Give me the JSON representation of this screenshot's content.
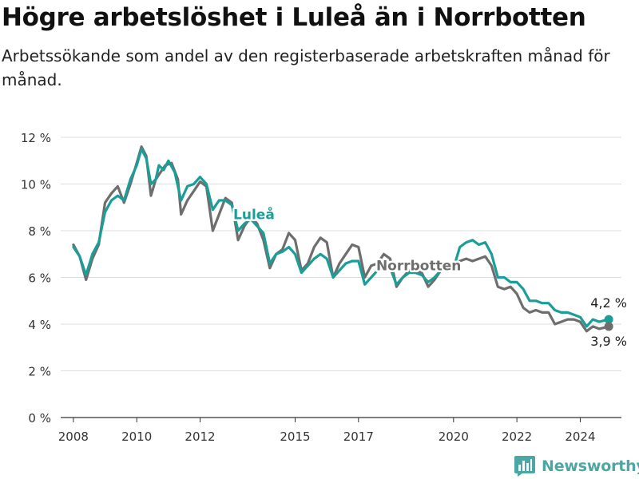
{
  "title": "Högre arbetslöshet i Luleå än i Norrbotten",
  "subtitle": "Arbetssökande som andel av den registerbaserade arbetskraften månad för månad.",
  "brand": {
    "name": "Newsworthy",
    "logo_icon": "bar-chart-logo-icon",
    "color": "#4ba7a4"
  },
  "chart_data": {
    "type": "line",
    "ylim": [
      0,
      12
    ],
    "xlim": [
      2007.6,
      2025.3
    ],
    "y_ticks": [
      0,
      2,
      4,
      6,
      8,
      10,
      12
    ],
    "y_tick_labels": [
      "0 %",
      "2 %",
      "4 %",
      "6 %",
      "8 %",
      "10 %",
      "12 %"
    ],
    "x_ticks": [
      2008,
      2010,
      2012,
      2015,
      2017,
      2020,
      2022,
      2024
    ],
    "x_tick_labels": [
      "2008",
      "2010",
      "2012",
      "2015",
      "2017",
      "2020",
      "2022",
      "2024"
    ],
    "grid": true,
    "series": [
      {
        "name": "Luleå",
        "color": "#1a9e97",
        "label_x": 2013.7,
        "label_y": 8.5,
        "end_label": "4,2 %",
        "points": [
          [
            2008.0,
            7.3
          ],
          [
            2008.2,
            6.9
          ],
          [
            2008.4,
            6.1
          ],
          [
            2008.6,
            7.0
          ],
          [
            2008.8,
            7.5
          ],
          [
            2009.0,
            8.8
          ],
          [
            2009.2,
            9.3
          ],
          [
            2009.4,
            9.5
          ],
          [
            2009.6,
            9.3
          ],
          [
            2009.8,
            10.2
          ],
          [
            2010.0,
            10.8
          ],
          [
            2010.15,
            11.5
          ],
          [
            2010.3,
            11.1
          ],
          [
            2010.45,
            10.0
          ],
          [
            2010.6,
            10.2
          ],
          [
            2010.7,
            10.8
          ],
          [
            2010.85,
            10.6
          ],
          [
            2011.0,
            11.0
          ],
          [
            2011.2,
            10.5
          ],
          [
            2011.4,
            9.3
          ],
          [
            2011.6,
            9.9
          ],
          [
            2011.8,
            10.0
          ],
          [
            2012.0,
            10.3
          ],
          [
            2012.2,
            10.0
          ],
          [
            2012.4,
            8.9
          ],
          [
            2012.6,
            9.3
          ],
          [
            2012.8,
            9.3
          ],
          [
            2013.0,
            9.1
          ],
          [
            2013.2,
            8.0
          ],
          [
            2013.4,
            8.3
          ],
          [
            2013.6,
            8.5
          ],
          [
            2013.8,
            8.2
          ],
          [
            2014.0,
            7.9
          ],
          [
            2014.2,
            6.6
          ],
          [
            2014.4,
            7.0
          ],
          [
            2014.6,
            7.1
          ],
          [
            2014.8,
            7.3
          ],
          [
            2015.0,
            7.0
          ],
          [
            2015.2,
            6.2
          ],
          [
            2015.4,
            6.5
          ],
          [
            2015.6,
            6.8
          ],
          [
            2015.8,
            7.0
          ],
          [
            2016.0,
            6.8
          ],
          [
            2016.2,
            6.0
          ],
          [
            2016.4,
            6.3
          ],
          [
            2016.6,
            6.6
          ],
          [
            2016.8,
            6.7
          ],
          [
            2017.0,
            6.7
          ],
          [
            2017.2,
            5.7
          ],
          [
            2017.4,
            6.0
          ],
          [
            2017.6,
            6.3
          ],
          [
            2017.8,
            6.4
          ],
          [
            2018.0,
            6.4
          ],
          [
            2018.2,
            5.7
          ],
          [
            2018.4,
            6.0
          ],
          [
            2018.6,
            6.2
          ],
          [
            2018.8,
            6.2
          ],
          [
            2019.0,
            6.1
          ],
          [
            2019.2,
            5.8
          ],
          [
            2019.4,
            6.0
          ],
          [
            2019.6,
            6.3
          ],
          [
            2019.8,
            6.5
          ],
          [
            2020.0,
            6.4
          ],
          [
            2020.2,
            7.3
          ],
          [
            2020.4,
            7.5
          ],
          [
            2020.6,
            7.6
          ],
          [
            2020.8,
            7.4
          ],
          [
            2021.0,
            7.5
          ],
          [
            2021.2,
            7.0
          ],
          [
            2021.4,
            6.0
          ],
          [
            2021.6,
            6.0
          ],
          [
            2021.8,
            5.8
          ],
          [
            2022.0,
            5.8
          ],
          [
            2022.2,
            5.5
          ],
          [
            2022.4,
            5.0
          ],
          [
            2022.6,
            5.0
          ],
          [
            2022.8,
            4.9
          ],
          [
            2023.0,
            4.9
          ],
          [
            2023.2,
            4.6
          ],
          [
            2023.4,
            4.5
          ],
          [
            2023.6,
            4.5
          ],
          [
            2023.8,
            4.4
          ],
          [
            2024.0,
            4.3
          ],
          [
            2024.2,
            3.9
          ],
          [
            2024.4,
            4.2
          ],
          [
            2024.6,
            4.1
          ],
          [
            2024.9,
            4.2
          ]
        ]
      },
      {
        "name": "Norrbotten",
        "color": "#6e6e6e",
        "label_x": 2018.9,
        "label_y": 6.3,
        "end_label": "3,9 %",
        "points": [
          [
            2008.0,
            7.4
          ],
          [
            2008.2,
            6.9
          ],
          [
            2008.4,
            5.9
          ],
          [
            2008.6,
            6.8
          ],
          [
            2008.8,
            7.4
          ],
          [
            2009.0,
            9.2
          ],
          [
            2009.2,
            9.6
          ],
          [
            2009.4,
            9.9
          ],
          [
            2009.6,
            9.2
          ],
          [
            2009.8,
            10.0
          ],
          [
            2010.0,
            10.9
          ],
          [
            2010.15,
            11.6
          ],
          [
            2010.3,
            11.2
          ],
          [
            2010.45,
            9.5
          ],
          [
            2010.6,
            10.2
          ],
          [
            2010.75,
            10.5
          ],
          [
            2010.9,
            10.8
          ],
          [
            2011.1,
            10.9
          ],
          [
            2011.3,
            10.2
          ],
          [
            2011.4,
            8.7
          ],
          [
            2011.6,
            9.3
          ],
          [
            2011.8,
            9.7
          ],
          [
            2012.0,
            10.1
          ],
          [
            2012.2,
            9.9
          ],
          [
            2012.4,
            8.0
          ],
          [
            2012.6,
            8.7
          ],
          [
            2012.8,
            9.4
          ],
          [
            2013.0,
            9.2
          ],
          [
            2013.2,
            7.6
          ],
          [
            2013.4,
            8.2
          ],
          [
            2013.6,
            8.6
          ],
          [
            2013.8,
            8.3
          ],
          [
            2014.0,
            7.6
          ],
          [
            2014.2,
            6.4
          ],
          [
            2014.4,
            7.0
          ],
          [
            2014.6,
            7.2
          ],
          [
            2014.8,
            7.9
          ],
          [
            2015.0,
            7.6
          ],
          [
            2015.2,
            6.3
          ],
          [
            2015.4,
            6.6
          ],
          [
            2015.6,
            7.3
          ],
          [
            2015.8,
            7.7
          ],
          [
            2016.0,
            7.5
          ],
          [
            2016.2,
            6.0
          ],
          [
            2016.4,
            6.6
          ],
          [
            2016.6,
            7.0
          ],
          [
            2016.8,
            7.4
          ],
          [
            2017.0,
            7.3
          ],
          [
            2017.2,
            6.0
          ],
          [
            2017.4,
            6.5
          ],
          [
            2017.6,
            6.6
          ],
          [
            2017.8,
            7.0
          ],
          [
            2018.0,
            6.8
          ],
          [
            2018.2,
            5.6
          ],
          [
            2018.4,
            6.0
          ],
          [
            2018.6,
            6.3
          ],
          [
            2018.8,
            6.3
          ],
          [
            2019.0,
            6.2
          ],
          [
            2019.2,
            5.6
          ],
          [
            2019.4,
            5.9
          ],
          [
            2019.6,
            6.3
          ],
          [
            2019.8,
            6.5
          ],
          [
            2020.0,
            6.5
          ],
          [
            2020.2,
            6.7
          ],
          [
            2020.4,
            6.8
          ],
          [
            2020.6,
            6.7
          ],
          [
            2020.8,
            6.8
          ],
          [
            2021.0,
            6.9
          ],
          [
            2021.2,
            6.5
          ],
          [
            2021.4,
            5.6
          ],
          [
            2021.6,
            5.5
          ],
          [
            2021.8,
            5.6
          ],
          [
            2022.0,
            5.3
          ],
          [
            2022.2,
            4.7
          ],
          [
            2022.4,
            4.5
          ],
          [
            2022.6,
            4.6
          ],
          [
            2022.8,
            4.5
          ],
          [
            2023.0,
            4.5
          ],
          [
            2023.2,
            4.0
          ],
          [
            2023.4,
            4.1
          ],
          [
            2023.6,
            4.2
          ],
          [
            2023.8,
            4.2
          ],
          [
            2024.0,
            4.1
          ],
          [
            2024.2,
            3.7
          ],
          [
            2024.4,
            3.9
          ],
          [
            2024.6,
            3.8
          ],
          [
            2024.9,
            3.9
          ]
        ]
      }
    ]
  }
}
